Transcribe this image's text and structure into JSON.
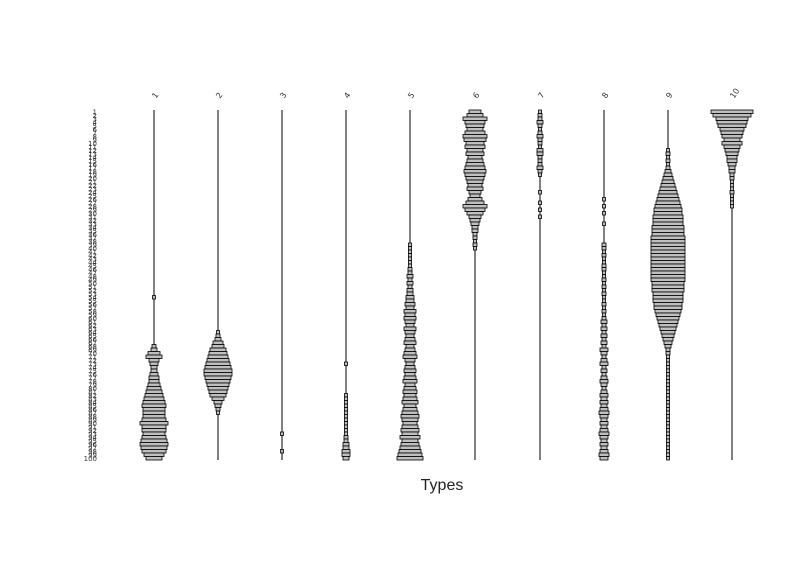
{
  "chart_data": {
    "type": "kite",
    "xlabel": "Types",
    "row_label_count": 100,
    "bar_fill": "#bfbfbf",
    "bar_stroke": "#000000",
    "series": [
      {
        "name": "1",
        "values": [
          0,
          0,
          0,
          0,
          0,
          0,
          0,
          0,
          0,
          0,
          0,
          0,
          0,
          0,
          0,
          0,
          0,
          0,
          0,
          0,
          0,
          0,
          0,
          0,
          0,
          0,
          0,
          0,
          0,
          0,
          0,
          0,
          0,
          0,
          0,
          0,
          0,
          0,
          0,
          0,
          0,
          0,
          0,
          0,
          0,
          0,
          0,
          0,
          0,
          0,
          0,
          0,
          0,
          1,
          0,
          0,
          0,
          0,
          0,
          0,
          0,
          0,
          0,
          0,
          0,
          0,
          0,
          2,
          3,
          6,
          8,
          5,
          4,
          3,
          3,
          4,
          5,
          5,
          6,
          7,
          8,
          9,
          10,
          11,
          12,
          11,
          11,
          11,
          12,
          14,
          12,
          12,
          11,
          12,
          13,
          14,
          13,
          12,
          10,
          8
        ]
      },
      {
        "name": "2",
        "values": [
          0,
          0,
          0,
          0,
          0,
          0,
          0,
          0,
          0,
          0,
          0,
          0,
          0,
          0,
          0,
          0,
          0,
          0,
          0,
          0,
          0,
          0,
          0,
          0,
          0,
          0,
          0,
          0,
          0,
          0,
          0,
          0,
          0,
          0,
          0,
          0,
          0,
          0,
          0,
          0,
          0,
          0,
          0,
          0,
          0,
          0,
          0,
          0,
          0,
          0,
          0,
          0,
          0,
          0,
          0,
          0,
          0,
          0,
          0,
          0,
          0,
          0,
          0,
          1,
          2,
          3,
          5,
          6,
          8,
          9,
          10,
          11,
          12,
          13,
          14,
          14,
          13,
          12,
          11,
          10,
          9,
          8,
          6,
          4,
          3,
          2,
          1,
          0,
          0,
          0,
          0,
          0,
          0,
          0,
          0,
          0,
          0,
          0,
          0,
          0
        ]
      },
      {
        "name": "3",
        "values": [
          0,
          0,
          0,
          0,
          0,
          0,
          0,
          0,
          0,
          0,
          0,
          0,
          0,
          0,
          0,
          0,
          0,
          0,
          0,
          0,
          0,
          0,
          0,
          0,
          0,
          0,
          0,
          0,
          0,
          0,
          0,
          0,
          0,
          0,
          0,
          0,
          0,
          0,
          0,
          0,
          0,
          0,
          0,
          0,
          0,
          0,
          0,
          0,
          0,
          0,
          0,
          0,
          0,
          0,
          0,
          0,
          0,
          0,
          0,
          0,
          0,
          0,
          0,
          0,
          0,
          0,
          0,
          0,
          0,
          0,
          0,
          0,
          0,
          0,
          0,
          0,
          0,
          0,
          0,
          0,
          0,
          0,
          0,
          0,
          0,
          0,
          0,
          0,
          0,
          0,
          0,
          0,
          1,
          0,
          0,
          0,
          0,
          1,
          0,
          0
        ]
      },
      {
        "name": "4",
        "values": [
          0,
          0,
          0,
          0,
          0,
          0,
          0,
          0,
          0,
          0,
          0,
          0,
          0,
          0,
          0,
          0,
          0,
          0,
          0,
          0,
          0,
          0,
          0,
          0,
          0,
          0,
          0,
          0,
          0,
          0,
          0,
          0,
          0,
          0,
          0,
          0,
          0,
          0,
          0,
          0,
          0,
          0,
          0,
          0,
          0,
          0,
          0,
          0,
          0,
          0,
          0,
          0,
          0,
          0,
          0,
          0,
          0,
          0,
          0,
          0,
          0,
          0,
          0,
          0,
          0,
          0,
          0,
          0,
          0,
          0,
          0,
          0,
          1,
          0,
          0,
          0,
          0,
          0,
          0,
          0,
          0,
          1,
          1,
          1,
          1,
          1,
          1,
          1,
          1,
          1,
          1,
          1,
          1,
          2,
          2,
          3,
          3,
          4,
          4,
          3
        ]
      },
      {
        "name": "5",
        "values": [
          0,
          0,
          0,
          0,
          0,
          0,
          0,
          0,
          0,
          0,
          0,
          0,
          0,
          0,
          0,
          0,
          0,
          0,
          0,
          0,
          0,
          0,
          0,
          0,
          0,
          0,
          0,
          0,
          0,
          0,
          0,
          0,
          0,
          0,
          0,
          0,
          0,
          0,
          1,
          1,
          1,
          1,
          1,
          1,
          1,
          2,
          2,
          3,
          2,
          3,
          2,
          3,
          3,
          4,
          4,
          5,
          4,
          6,
          5,
          6,
          5,
          4,
          6,
          5,
          4,
          5,
          6,
          4,
          5,
          6,
          7,
          5,
          4,
          5,
          6,
          5,
          6,
          7,
          5,
          6,
          7,
          6,
          7,
          8,
          6,
          7,
          8,
          9,
          8,
          7,
          8,
          9,
          8,
          10,
          8,
          9,
          10,
          11,
          12,
          13
        ]
      },
      {
        "name": "6",
        "values": [
          6,
          8,
          12,
          10,
          9,
          8,
          10,
          12,
          11,
          9,
          10,
          8,
          9,
          7,
          8,
          9,
          10,
          11,
          10,
          9,
          8,
          7,
          8,
          6,
          5,
          7,
          9,
          12,
          10,
          8,
          6,
          5,
          4,
          3,
          3,
          2,
          2,
          1,
          2,
          1,
          0,
          0,
          0,
          0,
          0,
          0,
          0,
          0,
          0,
          0,
          0,
          0,
          0,
          0,
          0,
          0,
          0,
          0,
          0,
          0,
          0,
          0,
          0,
          0,
          0,
          0,
          0,
          0,
          0,
          0,
          0,
          0,
          0,
          0,
          0,
          0,
          0,
          0,
          0,
          0,
          0,
          0,
          0,
          0,
          0,
          0,
          0,
          0,
          0,
          0,
          0,
          0,
          0,
          0,
          0,
          0,
          0,
          0,
          0,
          0
        ]
      },
      {
        "name": "7",
        "values": [
          1,
          2,
          2,
          3,
          2,
          1,
          2,
          3,
          2,
          2,
          1,
          3,
          3,
          2,
          2,
          2,
          3,
          2,
          1,
          0,
          0,
          0,
          0,
          1,
          0,
          0,
          1,
          0,
          1,
          0,
          1,
          0,
          0,
          0,
          0,
          0,
          0,
          0,
          0,
          0,
          0,
          0,
          0,
          0,
          0,
          0,
          0,
          0,
          0,
          0,
          0,
          0,
          0,
          0,
          0,
          0,
          0,
          0,
          0,
          0,
          0,
          0,
          0,
          0,
          0,
          0,
          0,
          0,
          0,
          0,
          0,
          0,
          0,
          0,
          0,
          0,
          0,
          0,
          0,
          0,
          0,
          0,
          0,
          0,
          0,
          0,
          0,
          0,
          0,
          0,
          0,
          0,
          0,
          0,
          0,
          0,
          0,
          0,
          0,
          0
        ]
      },
      {
        "name": "8",
        "values": [
          0,
          0,
          0,
          0,
          0,
          0,
          0,
          0,
          0,
          0,
          0,
          0,
          0,
          0,
          0,
          0,
          0,
          0,
          0,
          0,
          0,
          0,
          0,
          0,
          0,
          1,
          0,
          1,
          0,
          1,
          0,
          0,
          1,
          0,
          0,
          0,
          0,
          0,
          2,
          2,
          1,
          2,
          1,
          1,
          2,
          2,
          1,
          1,
          2,
          1,
          2,
          1,
          2,
          1,
          1,
          2,
          1,
          2,
          1,
          2,
          3,
          2,
          3,
          2,
          3,
          2,
          3,
          2,
          4,
          3,
          2,
          3,
          4,
          2,
          3,
          2,
          3,
          4,
          3,
          2,
          3,
          4,
          3,
          4,
          3,
          4,
          5,
          4,
          3,
          4,
          3,
          4,
          5,
          4,
          3,
          4,
          3,
          4,
          5,
          4
        ]
      },
      {
        "name": "9",
        "values": [
          0,
          0,
          0,
          0,
          0,
          0,
          0,
          0,
          0,
          0,
          0,
          1,
          2,
          1,
          2,
          1,
          2,
          3,
          4,
          5,
          6,
          7,
          8,
          9,
          10,
          11,
          12,
          13,
          14,
          14,
          15,
          15,
          15,
          16,
          16,
          16,
          17,
          17,
          17,
          17,
          17,
          17,
          17,
          17,
          17,
          17,
          17,
          17,
          17,
          16,
          16,
          16,
          15,
          15,
          15,
          14,
          14,
          13,
          12,
          11,
          10,
          9,
          8,
          7,
          6,
          5,
          4,
          3,
          2,
          2,
          1,
          1,
          1,
          1,
          1,
          1,
          1,
          1,
          1,
          1,
          1,
          1,
          1,
          1,
          1,
          1,
          1,
          1,
          1,
          1,
          1,
          1,
          1,
          1,
          1,
          1,
          1,
          1,
          1,
          1
        ]
      },
      {
        "name": "10",
        "values": [
          21,
          19,
          16,
          15,
          14,
          12,
          11,
          10,
          8,
          10,
          8,
          7,
          6,
          5,
          5,
          4,
          3,
          3,
          2,
          2,
          1,
          1,
          1,
          2,
          1,
          1,
          1,
          1,
          0,
          0,
          0,
          0,
          0,
          0,
          0,
          0,
          0,
          0,
          0,
          0,
          0,
          0,
          0,
          0,
          0,
          0,
          0,
          0,
          0,
          0,
          0,
          0,
          0,
          0,
          0,
          0,
          0,
          0,
          0,
          0,
          0,
          0,
          0,
          0,
          0,
          0,
          0,
          0,
          0,
          0,
          0,
          0,
          0,
          0,
          0,
          0,
          0,
          0,
          0,
          0,
          0,
          0,
          0,
          0,
          0,
          0,
          0,
          0,
          0,
          0,
          0,
          0,
          0,
          0,
          0,
          0,
          0,
          0,
          0,
          0
        ]
      }
    ]
  }
}
